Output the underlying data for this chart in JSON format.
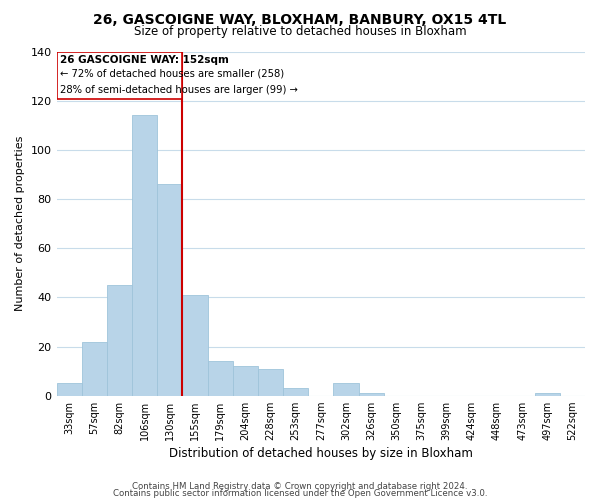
{
  "title": "26, GASCOIGNE WAY, BLOXHAM, BANBURY, OX15 4TL",
  "subtitle": "Size of property relative to detached houses in Bloxham",
  "xlabel": "Distribution of detached houses by size in Bloxham",
  "ylabel": "Number of detached properties",
  "bar_labels": [
    "33sqm",
    "57sqm",
    "82sqm",
    "106sqm",
    "130sqm",
    "155sqm",
    "179sqm",
    "204sqm",
    "228sqm",
    "253sqm",
    "277sqm",
    "302sqm",
    "326sqm",
    "350sqm",
    "375sqm",
    "399sqm",
    "424sqm",
    "448sqm",
    "473sqm",
    "497sqm",
    "522sqm"
  ],
  "bar_values": [
    5,
    22,
    45,
    114,
    86,
    41,
    14,
    12,
    11,
    3,
    0,
    5,
    1,
    0,
    0,
    0,
    0,
    0,
    0,
    1,
    0
  ],
  "bar_color": "#b8d4e8",
  "bar_edge_color": "#9fc4da",
  "ref_line_label": "26 GASCOIGNE WAY: 152sqm",
  "annotation_line1": "← 72% of detached houses are smaller (258)",
  "annotation_line2": "28% of semi-detached houses are larger (99) →",
  "ref_line_color": "#cc0000",
  "box_edge_color": "#cc0000",
  "ylim": [
    0,
    140
  ],
  "yticks": [
    0,
    20,
    40,
    60,
    80,
    100,
    120,
    140
  ],
  "footer1": "Contains HM Land Registry data © Crown copyright and database right 2024.",
  "footer2": "Contains public sector information licensed under the Open Government Licence v3.0.",
  "bg_color": "#ffffff",
  "grid_color": "#c8dcea"
}
